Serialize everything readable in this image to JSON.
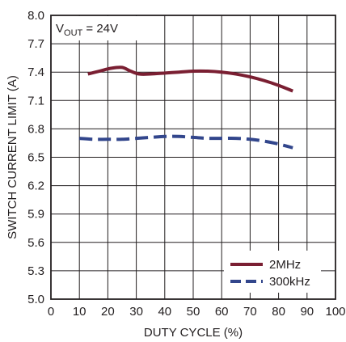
{
  "chart_data": {
    "type": "line",
    "xlabel": "DUTY CYCLE (%)",
    "ylabel": "SWITCH CURRENT LIMIT (A)",
    "xlim": [
      0,
      100
    ],
    "ylim": [
      5.0,
      8.0
    ],
    "x_ticks": [
      0,
      10,
      20,
      30,
      40,
      50,
      60,
      70,
      80,
      90,
      100
    ],
    "y_ticks": [
      "5.0",
      "5.3",
      "5.6",
      "5.9",
      "6.2",
      "6.5",
      "6.8",
      "7.1",
      "7.4",
      "7.7",
      "8.0"
    ],
    "grid": true,
    "legend_position": "bottom-right",
    "annotation": {
      "prefix": "V",
      "subscript": "OUT",
      "suffix": " = 24V"
    },
    "series": [
      {
        "name": "2MHz",
        "color": "#7a1f32",
        "dash": "solid",
        "x": [
          13,
          17,
          21,
          25,
          28,
          31,
          35,
          40,
          45,
          50,
          55,
          60,
          65,
          70,
          75,
          80,
          85
        ],
        "y": [
          7.38,
          7.41,
          7.44,
          7.45,
          7.41,
          7.38,
          7.38,
          7.39,
          7.4,
          7.41,
          7.41,
          7.4,
          7.38,
          7.35,
          7.31,
          7.26,
          7.2
        ]
      },
      {
        "name": "300kHz",
        "color": "#32468c",
        "dash": "dashed",
        "x": [
          10,
          15,
          20,
          25,
          30,
          35,
          40,
          45,
          50,
          55,
          60,
          65,
          70,
          75,
          80,
          85
        ],
        "y": [
          6.7,
          6.69,
          6.69,
          6.69,
          6.7,
          6.71,
          6.72,
          6.72,
          6.71,
          6.7,
          6.7,
          6.7,
          6.69,
          6.67,
          6.64,
          6.6
        ]
      }
    ]
  }
}
